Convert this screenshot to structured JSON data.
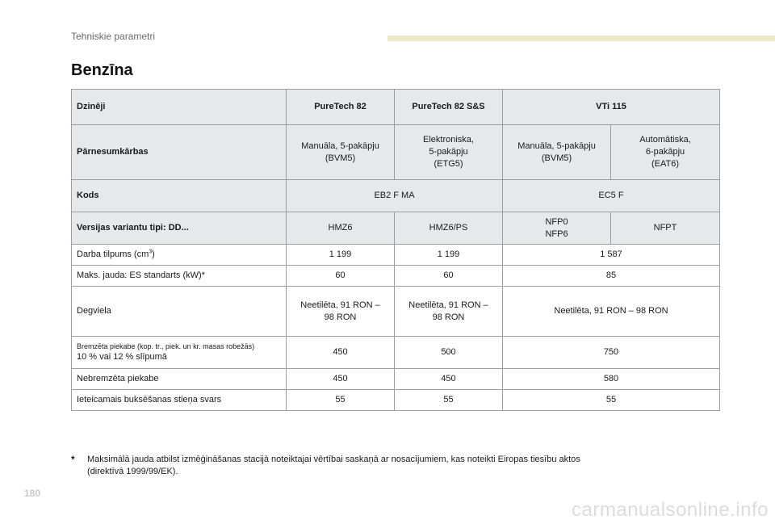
{
  "header": {
    "section": "Tehniskie parametri"
  },
  "title": "Benzīna",
  "table": {
    "engines_label": "Dzinēji",
    "engines": [
      "PureTech 82",
      "PureTech 82 S&S",
      "VTi 115"
    ],
    "gearbox_label": "Pārnesumkārbas",
    "gearboxes": [
      [
        "Manuāla, 5-pakāpju",
        "(BVM5)"
      ],
      [
        "Elektroniska,",
        "5-pakāpju",
        "(ETG5)"
      ],
      [
        "Manuāla, 5-pakāpju",
        "(BVM5)"
      ],
      [
        "Automātiska,",
        "6-pakāpju",
        "(EAT6)"
      ]
    ],
    "codes_label": "Kods",
    "codes": [
      "EB2 F MA",
      "EC5 F"
    ],
    "variants_label": "Versijas variantu tipi: DD...",
    "variants": [
      "HMZ6",
      "HMZ6/PS",
      [
        "NFP0",
        "NFP6"
      ],
      "NFPT"
    ],
    "displacement": {
      "label": "Darba tilpums (cm",
      "unit_sup": "3",
      "label_end": ")",
      "values": [
        "1 199",
        "1 199",
        "1 587"
      ]
    },
    "power": {
      "label": "Maks. jauda: ES standarts (kW)*",
      "values": [
        "60",
        "60",
        "85"
      ]
    },
    "fuel": {
      "label": "Degviela",
      "values": [
        [
          "Neetilēta, 91 RON –",
          "98 RON"
        ],
        [
          "Neetilēta, 91 RON –",
          "98 RON"
        ],
        "Neetilēta, 91 RON – 98 RON"
      ]
    },
    "braked_trailer": {
      "label_small": "Bremzēta piekabe (kop. tr., piek. un kr. masas robežās)",
      "label": "10 % vai 12 % slīpumā",
      "values": [
        "450",
        "500",
        "750"
      ]
    },
    "unbraked_trailer": {
      "label": "Nebremzēta piekabe",
      "values": [
        "450",
        "450",
        "580"
      ]
    },
    "towbar": {
      "label": "Ieteicamais buksēšanas stieņa svars",
      "values": [
        "55",
        "55",
        "55"
      ]
    }
  },
  "footnote": {
    "mark": "*",
    "line1": "Maksimālā jauda atbilst izmēģināšanas stacijā noteiktajai vērtībai saskaņā ar nosacījumiem, kas noteikti Eiropas tiesību aktos",
    "line2": "(direktīvā 1999/99/EK)."
  },
  "page_number": "180",
  "watermark": "carmanualsonline.info"
}
